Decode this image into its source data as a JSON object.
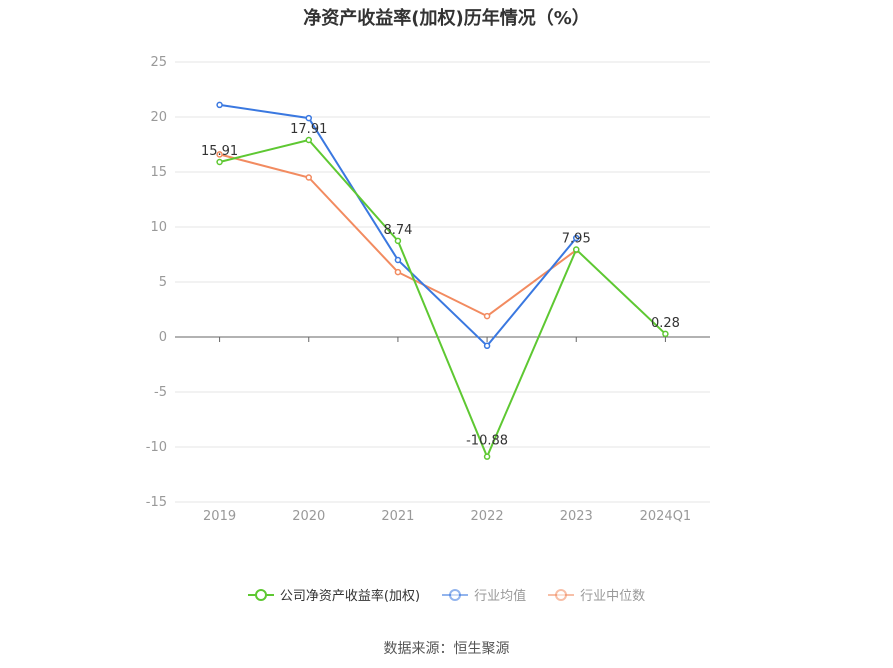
{
  "chart_data": {
    "type": "line",
    "title": "净资产收益率(加权)历年情况（%）",
    "categories": [
      "2019",
      "2020",
      "2021",
      "2022",
      "2023",
      "2024Q1"
    ],
    "ylim": [
      -15,
      25
    ],
    "yticks": [
      25,
      20,
      15,
      10,
      5,
      0,
      -5,
      -10,
      -15
    ],
    "grid": true,
    "legend_position": "bottom",
    "series": [
      {
        "name": "公司净资产收益率(加权)",
        "color": "#5ec832",
        "values": [
          15.91,
          17.91,
          8.74,
          -10.88,
          7.95,
          0.28
        ],
        "labels": [
          "15.91",
          "17.91",
          "8.74",
          "-10.88",
          "7.95",
          "0.28"
        ]
      },
      {
        "name": "行业均值",
        "color": "#3a78e0",
        "values": [
          21.1,
          19.9,
          7.0,
          -0.8,
          9.0,
          null
        ]
      },
      {
        "name": "行业中位数",
        "color": "#f28b60",
        "values": [
          16.6,
          14.5,
          5.9,
          1.9,
          7.9,
          null
        ]
      }
    ]
  },
  "source": "数据来源：恒生聚源"
}
